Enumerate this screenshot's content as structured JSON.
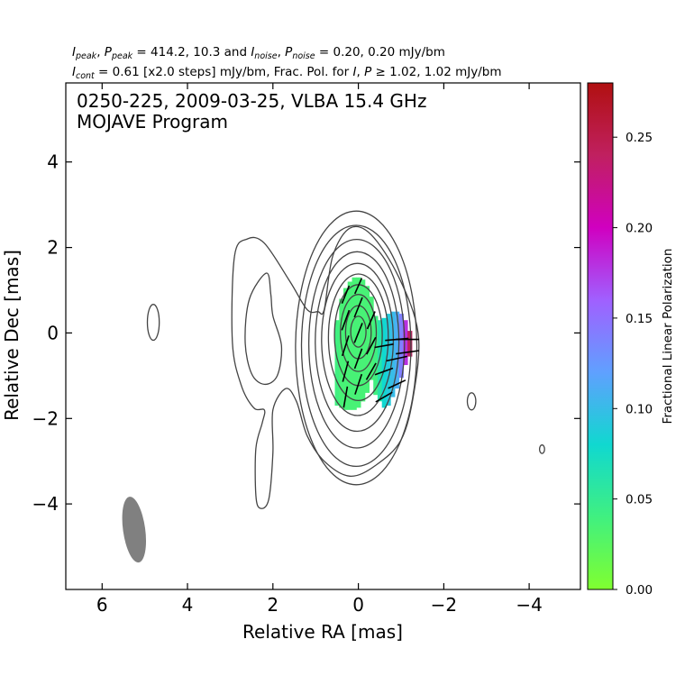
{
  "header": {
    "line1": {
      "parts": [
        {
          "t": "I",
          "style": "italic"
        },
        {
          "t": "peak",
          "style": "sub"
        },
        {
          "t": ", "
        },
        {
          "t": "P",
          "style": "italic"
        },
        {
          "t": "peak",
          "style": "sub"
        },
        {
          "t": " = 414.2, 10.3 and "
        },
        {
          "t": "I",
          "style": "italic"
        },
        {
          "t": "noise",
          "style": "sub"
        },
        {
          "t": ", "
        },
        {
          "t": "P",
          "style": "italic"
        },
        {
          "t": "noise",
          "style": "sub"
        },
        {
          "t": " = 0.20, 0.20 mJy/bm"
        }
      ]
    },
    "line2": {
      "parts": [
        {
          "t": "I",
          "style": "italic"
        },
        {
          "t": "cont",
          "style": "sub"
        },
        {
          "t": " = 0.61 [x2.0 steps] mJy/bm, Frac. Pol. for "
        },
        {
          "t": "I",
          "style": "italic"
        },
        {
          "t": ", "
        },
        {
          "t": "P",
          "style": "italic"
        },
        {
          "t": " ≥ 1.02, 1.02 mJy/bm"
        }
      ]
    }
  },
  "annotation": {
    "line1": "0250-225, 2009-03-25, VLBA 15.4 GHz",
    "line2": "MOJAVE Program"
  },
  "colors": {
    "contour": "#444444",
    "beam": "#808080",
    "vector": "#000000",
    "colorbar_stops": [
      "#80ff30",
      "#40f080",
      "#10d8d0",
      "#60a0ff",
      "#a060ff",
      "#d000c0",
      "#c02060",
      "#b01010"
    ]
  },
  "chart_data": {
    "type": "contour",
    "xlabel": "Relative RA [mas]",
    "ylabel": "Relative Dec [mas]",
    "xlim": [
      6.85,
      -5.2
    ],
    "ylim": [
      -6.0,
      5.85
    ],
    "x_ticks": [
      6,
      4,
      2,
      0,
      -2,
      -4
    ],
    "x_tick_labels": [
      "6",
      "4",
      "2",
      "0",
      "−2",
      "−4"
    ],
    "y_ticks": [
      -4,
      -2,
      0,
      2,
      4
    ],
    "y_tick_labels": [
      "−4",
      "−2",
      "0",
      "2",
      "4"
    ],
    "colorbar": {
      "label": "Fractional Linear Polarization",
      "range": [
        0.0,
        0.28
      ],
      "ticks": [
        0.0,
        0.05,
        0.1,
        0.15,
        0.2,
        0.25
      ],
      "tick_labels": [
        "0.00",
        "0.05",
        "0.10",
        "0.15",
        "0.20",
        "0.25"
      ]
    },
    "beam": {
      "x": 5.25,
      "y": -4.6,
      "major": 1.55,
      "minor": 0.52,
      "pa_deg": -8
    },
    "core_contours": [
      {
        "rx": 1.42,
        "ry": 3.2,
        "cx": 0.05,
        "cy": -0.35
      },
      {
        "rx": 1.28,
        "ry": 2.82,
        "cx": 0.05,
        "cy": -0.3
      },
      {
        "rx": 1.12,
        "ry": 2.44,
        "cx": 0.04,
        "cy": -0.25
      },
      {
        "rx": 0.98,
        "ry": 2.1,
        "cx": 0.03,
        "cy": -0.2
      },
      {
        "rx": 0.84,
        "ry": 1.78,
        "cx": 0.02,
        "cy": -0.15
      },
      {
        "rx": 0.7,
        "ry": 1.48,
        "cx": 0.0,
        "cy": -0.1
      },
      {
        "rx": 0.56,
        "ry": 1.18,
        "cx": 0.0,
        "cy": -0.05
      },
      {
        "rx": 0.42,
        "ry": 0.9,
        "cx": 0.0,
        "cy": 0.0
      },
      {
        "rx": 0.3,
        "ry": 0.62,
        "cx": 0.0,
        "cy": 0.02
      },
      {
        "rx": 0.18,
        "ry": 0.36,
        "cx": 0.0,
        "cy": 0.03
      }
    ],
    "outer_contour": [
      [
        2.9,
        1.8
      ],
      [
        2.6,
        2.2
      ],
      [
        2.2,
        2.1
      ],
      [
        1.6,
        1.2
      ],
      [
        1.2,
        0.55
      ],
      [
        0.95,
        0.5
      ],
      [
        0.8,
        0.55
      ],
      [
        0.6,
        1.8
      ],
      [
        0.2,
        2.45
      ],
      [
        -0.3,
        2.3
      ],
      [
        -0.95,
        1.3
      ],
      [
        -1.4,
        0.0
      ],
      [
        -1.3,
        -1.4
      ],
      [
        -1.0,
        -2.5
      ],
      [
        -0.4,
        -3.1
      ],
      [
        0.2,
        -3.35
      ],
      [
        0.8,
        -3.0
      ],
      [
        1.2,
        -2.4
      ],
      [
        1.45,
        -1.6
      ],
      [
        1.7,
        -1.3
      ],
      [
        2.0,
        -1.8
      ],
      [
        2.0,
        -2.8
      ],
      [
        2.1,
        -3.9
      ],
      [
        2.3,
        -4.1
      ],
      [
        2.4,
        -3.8
      ],
      [
        2.4,
        -2.7
      ],
      [
        2.25,
        -2.1
      ],
      [
        2.2,
        -1.8
      ],
      [
        2.45,
        -1.75
      ],
      [
        2.75,
        -1.2
      ],
      [
        2.95,
        -0.2
      ],
      [
        2.9,
        1.8
      ]
    ],
    "inner_contour": [
      [
        2.15,
        1.4
      ],
      [
        2.55,
        0.8
      ],
      [
        2.65,
        -0.2
      ],
      [
        2.5,
        -0.95
      ],
      [
        2.2,
        -1.2
      ],
      [
        1.9,
        -1.0
      ],
      [
        1.8,
        -0.3
      ],
      [
        2.0,
        0.4
      ],
      [
        2.05,
        0.9
      ],
      [
        2.15,
        1.4
      ]
    ],
    "isolated_contours": [
      {
        "cx": 4.8,
        "cy": 0.25,
        "rx": 0.14,
        "ry": 0.42
      },
      {
        "cx": -2.65,
        "cy": -1.6,
        "rx": 0.1,
        "ry": 0.2
      },
      {
        "cx": -4.3,
        "cy": -2.72,
        "rx": 0.06,
        "ry": 0.1
      }
    ],
    "polarization_region": [
      {
        "x": 0.5,
        "y_lo": -1.7,
        "y_hi": 0.3,
        "frac": 0.04
      },
      {
        "x": 0.4,
        "y_lo": -1.75,
        "y_hi": 0.8,
        "frac": 0.035
      },
      {
        "x": 0.3,
        "y_lo": -1.8,
        "y_hi": 1.05,
        "frac": 0.035
      },
      {
        "x": 0.2,
        "y_lo": -1.8,
        "y_hi": 1.2,
        "frac": 0.035
      },
      {
        "x": 0.1,
        "y_lo": -1.8,
        "y_hi": 1.3,
        "frac": 0.035
      },
      {
        "x": 0.0,
        "y_lo": -1.75,
        "y_hi": 1.3,
        "frac": 0.035
      },
      {
        "x": -0.1,
        "y_lo": -1.6,
        "y_hi": 1.25,
        "frac": 0.035
      },
      {
        "x": -0.2,
        "y_lo": -1.4,
        "y_hi": 1.1,
        "frac": 0.035
      },
      {
        "x": -0.3,
        "y_lo": -1.1,
        "y_hi": 0.85,
        "frac": 0.035
      },
      {
        "x": -0.4,
        "y_lo": -1.45,
        "y_hi": 0.4,
        "frac": 0.04
      },
      {
        "x": -0.5,
        "y_lo": -1.6,
        "y_hi": 0.3,
        "frac": 0.06
      },
      {
        "x": -0.6,
        "y_lo": -1.75,
        "y_hi": 0.35,
        "frac": 0.08
      },
      {
        "x": -0.7,
        "y_lo": -1.7,
        "y_hi": 0.45,
        "frac": 0.09
      },
      {
        "x": -0.8,
        "y_lo": -1.5,
        "y_hi": 0.5,
        "frac": 0.1
      },
      {
        "x": -0.9,
        "y_lo": -1.3,
        "y_hi": 0.5,
        "frac": 0.11
      },
      {
        "x": -1.0,
        "y_lo": -1.05,
        "y_hi": 0.45,
        "frac": 0.14
      },
      {
        "x": -1.1,
        "y_lo": -0.75,
        "y_hi": 0.3,
        "frac": 0.18
      },
      {
        "x": -1.2,
        "y_lo": -0.55,
        "y_hi": 0.05,
        "frac": 0.24
      }
    ],
    "evpa_vectors": [
      {
        "x": 0.3,
        "y": -1.5,
        "angle_deg": 80,
        "len": 0.5
      },
      {
        "x": 0.3,
        "y": -0.9,
        "angle_deg": 75,
        "len": 0.5
      },
      {
        "x": 0.3,
        "y": -0.3,
        "angle_deg": 72,
        "len": 0.5
      },
      {
        "x": 0.3,
        "y": 0.3,
        "angle_deg": 70,
        "len": 0.5
      },
      {
        "x": 0.3,
        "y": 0.9,
        "angle_deg": 68,
        "len": 0.45
      },
      {
        "x": 0.0,
        "y": -1.2,
        "angle_deg": 72,
        "len": 0.5
      },
      {
        "x": 0.0,
        "y": -0.6,
        "angle_deg": 70,
        "len": 0.5
      },
      {
        "x": 0.0,
        "y": 0.0,
        "angle_deg": 68,
        "len": 0.5
      },
      {
        "x": 0.0,
        "y": 0.6,
        "angle_deg": 68,
        "len": 0.5
      },
      {
        "x": 0.0,
        "y": 1.1,
        "angle_deg": 66,
        "len": 0.4
      },
      {
        "x": -0.3,
        "y": -0.9,
        "angle_deg": 60,
        "len": 0.45
      },
      {
        "x": -0.3,
        "y": -0.3,
        "angle_deg": 62,
        "len": 0.45
      },
      {
        "x": -0.3,
        "y": 0.3,
        "angle_deg": 66,
        "len": 0.45
      },
      {
        "x": -0.6,
        "y": -1.5,
        "angle_deg": 30,
        "len": 0.45
      },
      {
        "x": -0.6,
        "y": -0.9,
        "angle_deg": 20,
        "len": 0.45
      },
      {
        "x": -0.6,
        "y": -0.3,
        "angle_deg": 10,
        "len": 0.45
      },
      {
        "x": -0.9,
        "y": -1.2,
        "angle_deg": 25,
        "len": 0.45
      },
      {
        "x": -0.9,
        "y": -0.6,
        "angle_deg": 12,
        "len": 0.5
      },
      {
        "x": -0.9,
        "y": -0.15,
        "angle_deg": 5,
        "len": 0.55
      },
      {
        "x": -1.15,
        "y": -0.45,
        "angle_deg": 8,
        "len": 0.55
      },
      {
        "x": -1.15,
        "y": -0.15,
        "angle_deg": 0,
        "len": 0.55
      }
    ]
  }
}
